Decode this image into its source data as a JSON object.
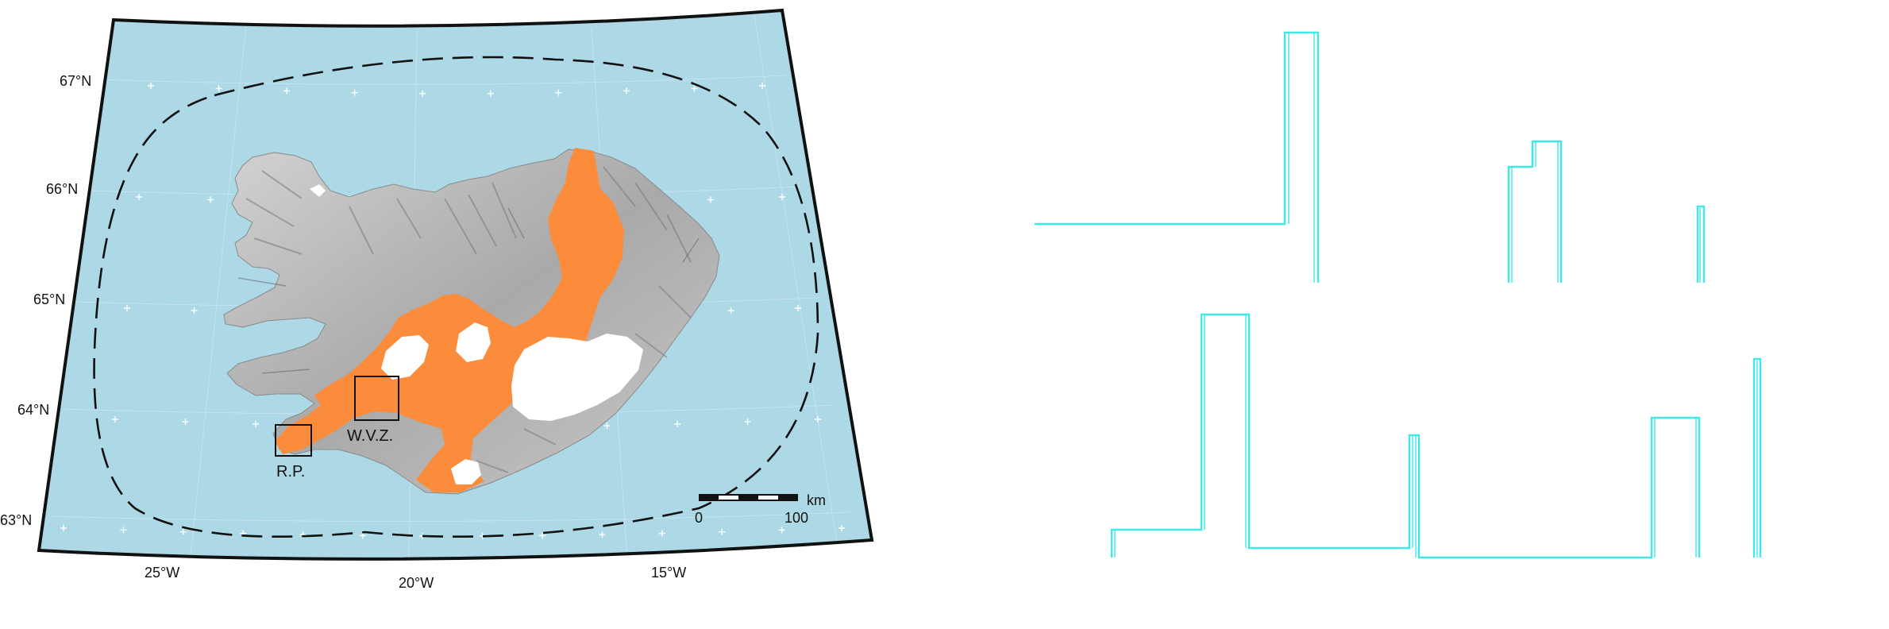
{
  "map": {
    "lat_labels": [
      "67°N",
      "66°N",
      "65°N",
      "64°N",
      "63°N"
    ],
    "lon_labels": [
      "25°W",
      "20°W",
      "15°W"
    ],
    "regions": {
      "rp": "R.P.",
      "wvz": "W.V.Z."
    },
    "scale_bar": {
      "start": "0",
      "end": "100",
      "unit": "km"
    },
    "colors": {
      "ocean": "#add8e6",
      "rift_zone": "#fb8c3c",
      "glacier": "#ffffff",
      "land": "#b9b9b9",
      "grid_marker": "#ffffff",
      "boundary_dash": "#111111"
    }
  },
  "plot": {
    "line_color": "#40e8e8"
  }
}
